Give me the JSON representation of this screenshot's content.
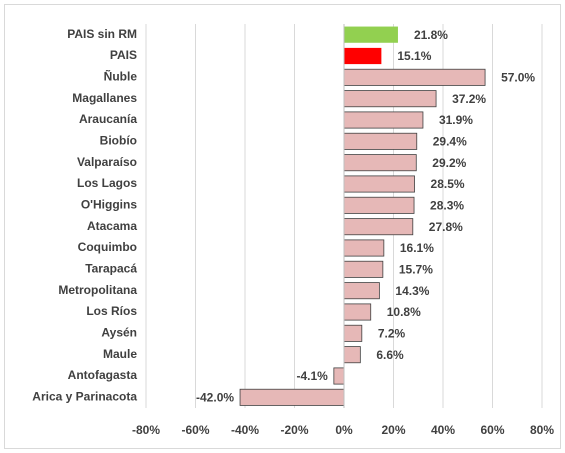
{
  "chart_data": {
    "type": "bar",
    "orientation": "horizontal",
    "categories": [
      "PAIS sin RM",
      "PAIS",
      "Ñuble",
      "Magallanes",
      "Araucanía",
      "Biobío",
      "Valparaíso",
      "Los Lagos",
      "O'Higgins",
      "Atacama",
      "Coquimbo",
      "Tarapacá",
      "Metropolitana",
      "Los Ríos",
      "Aysén",
      "Maule",
      "Antofagasta",
      "Arica y Parinacota"
    ],
    "values": [
      21.8,
      15.1,
      57.0,
      37.2,
      31.9,
      29.4,
      29.2,
      28.5,
      28.3,
      27.8,
      16.1,
      15.7,
      14.3,
      10.8,
      7.2,
      6.6,
      -4.1,
      -42.0
    ],
    "value_labels": [
      "21.8%",
      "15.1%",
      "57.0%",
      "37.2%",
      "31.9%",
      "29.4%",
      "29.2%",
      "28.5%",
      "28.3%",
      "27.8%",
      "16.1%",
      "15.7%",
      "14.3%",
      "10.8%",
      "7.2%",
      "6.6%",
      "-4.1%",
      "-42.0%"
    ],
    "colors": [
      "#92d050",
      "#ff0000",
      "#e6b8b7",
      "#e6b8b7",
      "#e6b8b7",
      "#e6b8b7",
      "#e6b8b7",
      "#e6b8b7",
      "#e6b8b7",
      "#e6b8b7",
      "#e6b8b7",
      "#e6b8b7",
      "#e6b8b7",
      "#e6b8b7",
      "#e6b8b7",
      "#e6b8b7",
      "#e6b8b7",
      "#e6b8b7"
    ],
    "xlim": [
      -80,
      80
    ],
    "xticks": [
      {
        "value": -80,
        "label": "-80%"
      },
      {
        "value": -60,
        "label": "-60%"
      },
      {
        "value": -40,
        "label": "-40%"
      },
      {
        "value": -20,
        "label": "-20%"
      },
      {
        "value": 0,
        "label": "0%"
      },
      {
        "value": 20,
        "label": "20%"
      },
      {
        "value": 40,
        "label": "40%"
      },
      {
        "value": 60,
        "label": "60%"
      },
      {
        "value": 80,
        "label": "80%"
      }
    ],
    "grid": true
  }
}
